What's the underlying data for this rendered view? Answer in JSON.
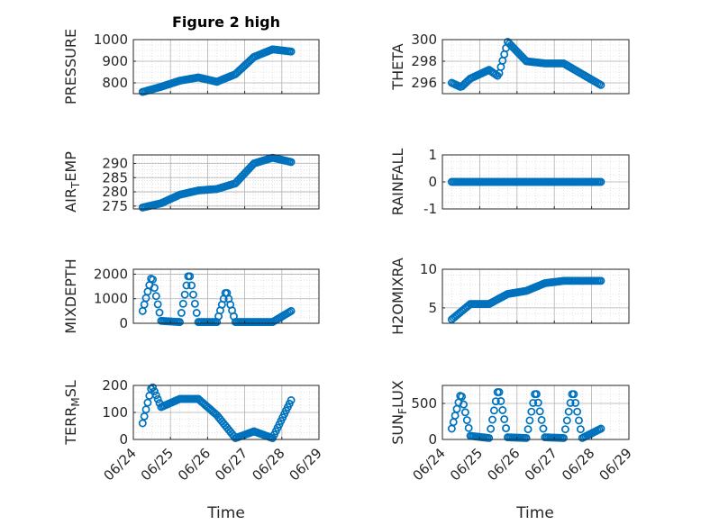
{
  "figure": {
    "title": "Figure 2 high",
    "marker_color": "#0072bd",
    "grid_color": "#b0b0b0"
  },
  "chart_data": [
    {
      "type": "scatter",
      "ylabel_parts": [
        "PRESSURE"
      ],
      "ylim": [
        750,
        1000
      ],
      "yticks": [
        "800",
        "900",
        "1000"
      ],
      "xticks": [
        "06/24",
        "06/25",
        "06/26",
        "06/27",
        "06/28",
        "06/29"
      ],
      "x": [
        "06/24 06:00",
        "06/24 18:00",
        "06/25 06:00",
        "06/25 18:00",
        "06/26 06:00",
        "06/26 18:00",
        "06/27 06:00",
        "06/27 18:00",
        "06/28 06:00"
      ],
      "y": [
        758,
        782,
        810,
        825,
        805,
        840,
        920,
        955,
        945
      ]
    },
    {
      "type": "scatter",
      "ylabel_parts": [
        "THETA"
      ],
      "ylim": [
        295,
        300
      ],
      "yticks": [
        "296",
        "298",
        "300"
      ],
      "xticks": [
        "06/24",
        "06/25",
        "06/26",
        "06/27",
        "06/28",
        "06/29"
      ],
      "x": [
        "06/24 06:00",
        "06/24 12:00",
        "06/24 18:00",
        "06/25 06:00",
        "06/25 12:00",
        "06/25 18:00",
        "06/26 06:00",
        "06/26 18:00",
        "06/27 06:00",
        "06/27 18:00",
        "06/28 06:00"
      ],
      "y": [
        296.0,
        295.6,
        296.4,
        297.2,
        296.6,
        299.8,
        298.0,
        297.8,
        297.8,
        296.8,
        295.8
      ]
    },
    {
      "type": "scatter",
      "ylabel_parts": [
        "AIR",
        "T",
        "EMP"
      ],
      "ylim": [
        274,
        293
      ],
      "yticks": [
        "275",
        "280",
        "285",
        "290"
      ],
      "xticks": [
        "06/24",
        "06/25",
        "06/26",
        "06/27",
        "06/28",
        "06/29"
      ],
      "x": [
        "06/24 06:00",
        "06/24 18:00",
        "06/25 06:00",
        "06/25 18:00",
        "06/26 06:00",
        "06/26 18:00",
        "06/27 06:00",
        "06/27 18:00",
        "06/28 06:00"
      ],
      "y": [
        274.5,
        276.0,
        279.0,
        280.5,
        281.0,
        283.0,
        290.0,
        292.0,
        290.5
      ]
    },
    {
      "type": "scatter",
      "ylabel_parts": [
        "RAINFALL"
      ],
      "ylim": [
        -1,
        1
      ],
      "yticks": [
        "-1",
        "0",
        "1"
      ],
      "xticks": [
        "06/24",
        "06/25",
        "06/26",
        "06/27",
        "06/28",
        "06/29"
      ],
      "x": [
        "06/24 06:00",
        "06/28 06:00"
      ],
      "y": [
        0,
        0
      ]
    },
    {
      "type": "scatter",
      "ylabel_parts": [
        "MIXDEPTH"
      ],
      "ylim": [
        0,
        2200
      ],
      "yticks": [
        "0",
        "1000",
        "2000"
      ],
      "xticks": [
        "06/24",
        "06/25",
        "06/26",
        "06/27",
        "06/28",
        "06/29"
      ],
      "x": [
        "06/24 06:00",
        "06/24 12:00",
        "06/24 18:00",
        "06/25 06:00",
        "06/25 12:00",
        "06/25 18:00",
        "06/26 06:00",
        "06/26 12:00",
        "06/26 18:00",
        "06/27 06:00",
        "06/27 18:00",
        "06/28 06:00"
      ],
      "y": [
        500,
        1950,
        100,
        50,
        2100,
        50,
        50,
        1350,
        50,
        50,
        50,
        500
      ]
    },
    {
      "type": "scatter",
      "ylabel_parts": [
        "H2OMIXRA"
      ],
      "ylim": [
        3,
        10
      ],
      "yticks": [
        "5",
        "10"
      ],
      "xticks": [
        "06/24",
        "06/25",
        "06/26",
        "06/27",
        "06/28",
        "06/29"
      ],
      "x": [
        "06/24 06:00",
        "06/24 18:00",
        "06/25 06:00",
        "06/25 18:00",
        "06/26 06:00",
        "06/26 18:00",
        "06/27 06:00",
        "06/27 18:00",
        "06/28 06:00"
      ],
      "y": [
        3.5,
        5.5,
        5.5,
        6.8,
        7.2,
        8.2,
        8.5,
        8.5,
        8.5
      ]
    },
    {
      "type": "scatter",
      "ylabel_parts": [
        "TERR",
        "M",
        "SL"
      ],
      "ylim": [
        0,
        200
      ],
      "yticks": [
        "0",
        "100",
        "200"
      ],
      "xticks": [
        "06/24",
        "06/25",
        "06/26",
        "06/27",
        "06/28",
        "06/29"
      ],
      "x": [
        "06/24 06:00",
        "06/24 12:00",
        "06/24 18:00",
        "06/25 06:00",
        "06/25 18:00",
        "06/26 06:00",
        "06/26 18:00",
        "06/27 06:00",
        "06/27 18:00",
        "06/28 06:00"
      ],
      "y": [
        60,
        200,
        120,
        150,
        150,
        90,
        5,
        30,
        5,
        145
      ]
    },
    {
      "type": "scatter",
      "ylabel_parts": [
        "SUN",
        "F",
        "LUX"
      ],
      "ylim": [
        0,
        750
      ],
      "yticks": [
        "0",
        "500"
      ],
      "xticks": [
        "06/24",
        "06/25",
        "06/26",
        "06/27",
        "06/28",
        "06/29"
      ],
      "x": [
        "06/24 06:00",
        "06/24 12:00",
        "06/24 18:00",
        "06/25 06:00",
        "06/25 12:00",
        "06/25 18:00",
        "06/26 06:00",
        "06/26 12:00",
        "06/26 18:00",
        "06/27 06:00",
        "06/27 12:00",
        "06/27 18:00",
        "06/28 06:00"
      ],
      "y": [
        150,
        650,
        50,
        20,
        720,
        30,
        20,
        690,
        30,
        20,
        690,
        20,
        150
      ]
    }
  ],
  "xlabels": [
    "Time",
    "Time"
  ]
}
